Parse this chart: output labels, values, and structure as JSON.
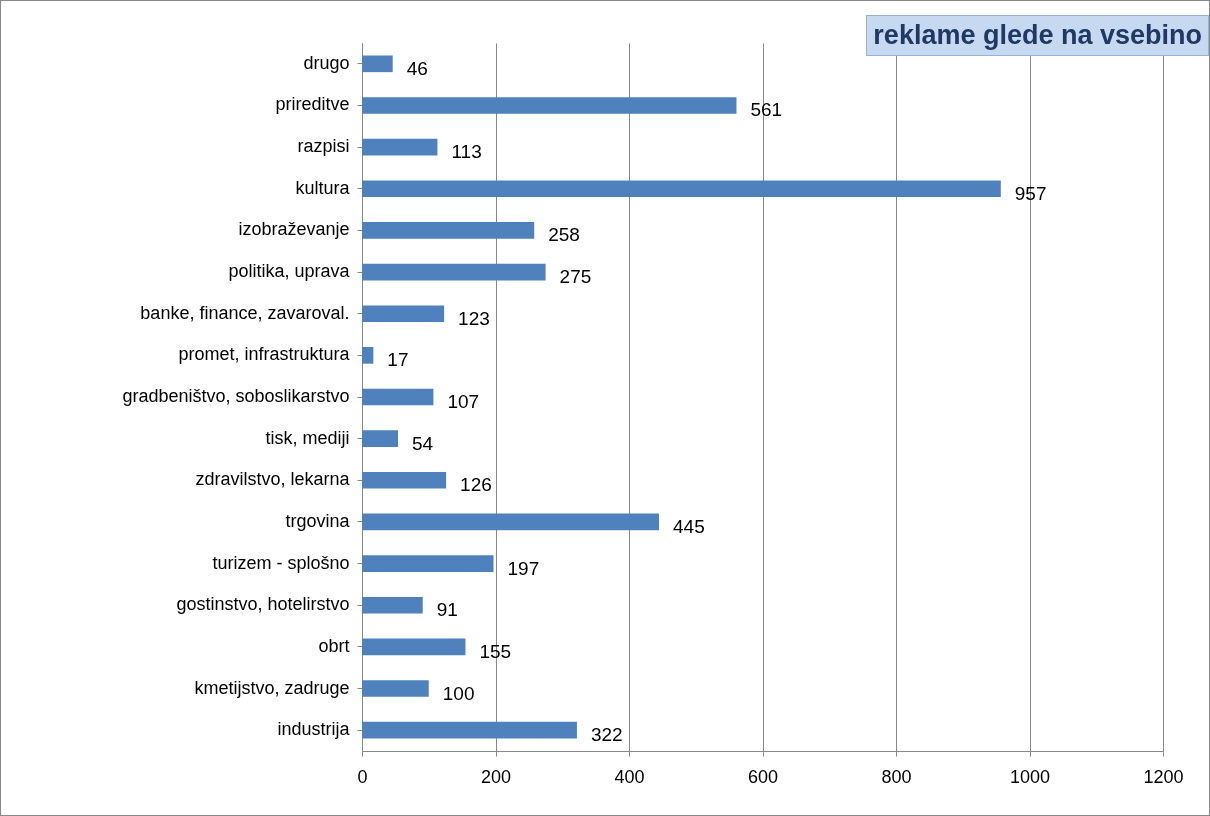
{
  "chart_data": {
    "type": "bar",
    "orientation": "horizontal",
    "title": "reklame glede na vsebino",
    "categories": [
      "drugo",
      "prireditve",
      "razpisi",
      "kultura",
      "izobraževanje",
      "politika, uprava ",
      "banke, finance, zavaroval.",
      "promet, infrastruktura",
      "gradbeništvo, soboslikarstvo",
      "tisk, mediji",
      "zdravilstvo, lekarna",
      "trgovina ",
      "turizem - splošno",
      "gostinstvo, hotelirstvo",
      "obrt",
      "kmetijstvo, zadruge",
      "industrija"
    ],
    "values": [
      46,
      561,
      113,
      957,
      258,
      275,
      123,
      17,
      107,
      54,
      126,
      445,
      197,
      91,
      155,
      100,
      322
    ],
    "color": "#4f81bd",
    "xlim": [
      0,
      1200
    ],
    "xticks": [
      0,
      200,
      400,
      600,
      800,
      1000,
      1200
    ],
    "grid": "x",
    "data_labels": true
  }
}
